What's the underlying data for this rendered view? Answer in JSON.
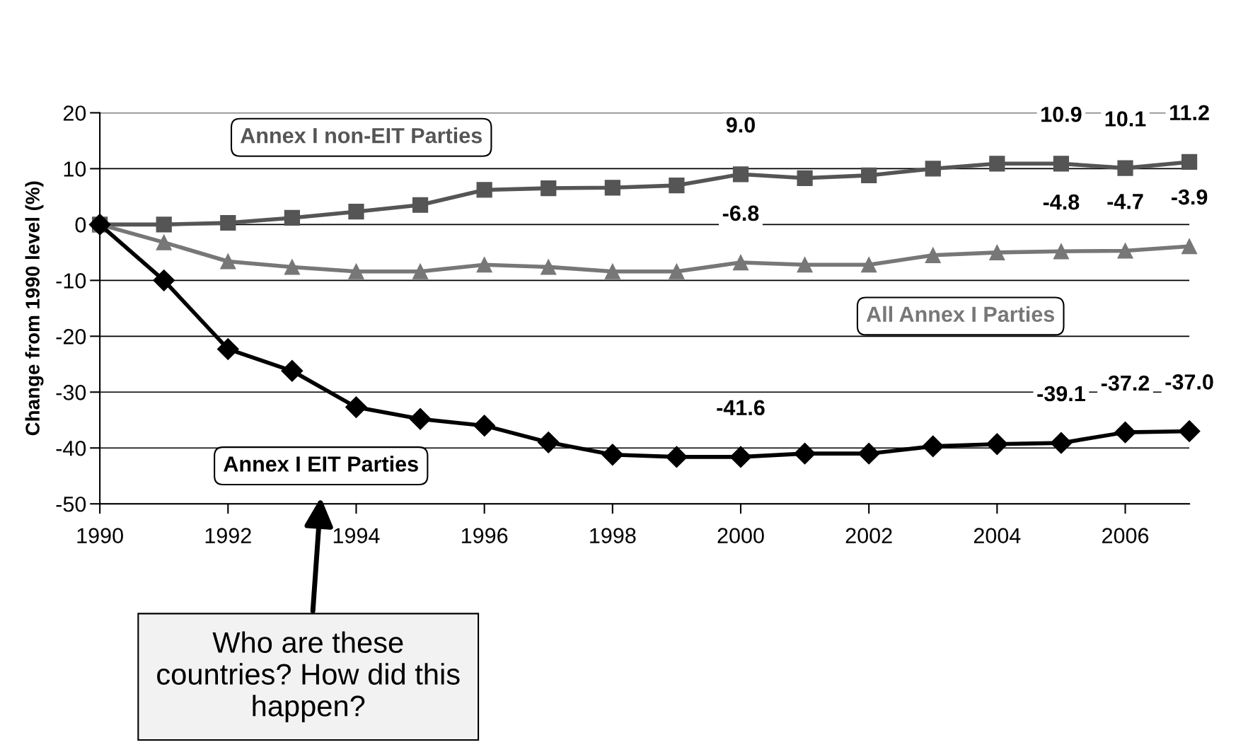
{
  "chart_data": {
    "type": "line",
    "ylabel": "Change from 1990 level (%)",
    "x": [
      1990,
      1991,
      1992,
      1993,
      1994,
      1995,
      1996,
      1997,
      1998,
      1999,
      2000,
      2001,
      2002,
      2003,
      2004,
      2005,
      2006,
      2007
    ],
    "series": [
      {
        "name": "Annex I non-EIT Parties",
        "color": "#555555",
        "marker": "square",
        "values": [
          0,
          0,
          0.3,
          1.2,
          2.3,
          3.5,
          6.2,
          6.5,
          6.6,
          7.0,
          9.0,
          8.3,
          8.8,
          10.0,
          10.9,
          10.9,
          10.1,
          11.2
        ],
        "value_labels": [
          null,
          null,
          null,
          null,
          null,
          null,
          null,
          null,
          null,
          null,
          "9.0",
          null,
          null,
          null,
          null,
          "10.9",
          "10.1",
          "11.2"
        ]
      },
      {
        "name": "All Annex I Parties",
        "color": "#777777",
        "marker": "triangle",
        "values": [
          0,
          -3.2,
          -6.6,
          -7.6,
          -8.4,
          -8.4,
          -7.2,
          -7.6,
          -8.4,
          -8.4,
          -6.8,
          -7.2,
          -7.2,
          -5.5,
          -5.0,
          -4.8,
          -4.7,
          -3.9
        ],
        "value_labels": [
          null,
          null,
          null,
          null,
          null,
          null,
          null,
          null,
          null,
          null,
          "-6.8",
          null,
          null,
          null,
          null,
          "-4.8",
          "-4.7",
          "-3.9"
        ]
      },
      {
        "name": "Annex I EIT Parties",
        "color": "#000000",
        "marker": "diamond",
        "values": [
          0,
          -10.0,
          -22.3,
          -26.2,
          -32.7,
          -34.8,
          -36.0,
          -39.0,
          -41.2,
          -41.6,
          -41.6,
          -41.0,
          -41.0,
          -39.7,
          -39.3,
          -39.1,
          -37.2,
          -37.0
        ],
        "value_labels": [
          null,
          null,
          null,
          null,
          null,
          null,
          null,
          null,
          null,
          null,
          "-41.6",
          null,
          null,
          null,
          null,
          "-39.1",
          "-37.2",
          "-37.0"
        ]
      }
    ],
    "xlim": [
      1990,
      2007
    ],
    "xticks": [
      1990,
      1992,
      1994,
      1996,
      1998,
      2000,
      2002,
      2004,
      2006
    ],
    "ylim": [
      -50,
      20
    ],
    "yticks": [
      -50,
      -40,
      -30,
      -20,
      -10,
      0,
      10,
      20
    ],
    "grid": "y",
    "legend": false,
    "line_style": "solid",
    "annotations": [
      "Who are these countries? How did this happen?"
    ]
  }
}
